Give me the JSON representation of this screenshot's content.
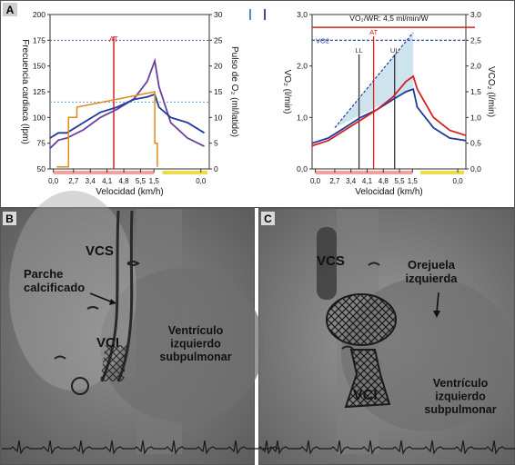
{
  "panels": {
    "a_label": "A",
    "b_label": "B",
    "c_label": "C"
  },
  "chart_data": [
    {
      "type": "line",
      "x": [
        "0,0",
        "2,7",
        "3,4",
        "4,1",
        "4,8",
        "5,5",
        "1,5",
        "0,0"
      ],
      "xlabel": "Velocidad (km/h)",
      "ylabel_left": "Frecuencia cardiaca (lpm)",
      "ylabel_right": "Pulso de O₂ (ml/latido)",
      "ylim_left": [
        50,
        200
      ],
      "ylim_right": [
        0,
        30
      ],
      "yticks_left": [
        "50",
        "75",
        "100",
        "125",
        "150",
        "175",
        "200"
      ],
      "yticks_right": [
        "0",
        "5",
        "10",
        "15",
        "20",
        "25",
        "30"
      ],
      "legend_swatches": [
        "#4a90d9",
        "#5a3aa0"
      ],
      "at_label": "AT",
      "colors": {
        "heart_rate": "#6b3fa0",
        "o2_pulse": "#1f3a9e",
        "workload": "#e08a1c",
        "at_line": "#d62020",
        "baseline": "#e07878",
        "recovery": "#e8d33a"
      },
      "series": [
        {
          "role": "heart_rate",
          "points": [
            [
              0.0,
              70
            ],
            [
              0.5,
              78
            ],
            [
              1.0,
              80
            ],
            [
              2.0,
              88
            ],
            [
              3.0,
              100
            ],
            [
              4.0,
              108
            ],
            [
              5.0,
              118
            ],
            [
              5.8,
              135
            ],
            [
              6.25,
              155
            ],
            [
              6.5,
              130
            ],
            [
              7.2,
              95
            ],
            [
              8.2,
              80
            ],
            [
              9.2,
              72
            ]
          ]
        },
        {
          "role": "o2_pulse",
          "points": [
            [
              0.0,
              6
            ],
            [
              0.5,
              7
            ],
            [
              1.0,
              7
            ],
            [
              2.0,
              9
            ],
            [
              3.0,
              11
            ],
            [
              4.0,
              12
            ],
            [
              5.0,
              13.5
            ],
            [
              5.8,
              14
            ],
            [
              6.25,
              14.5
            ],
            [
              6.5,
              12
            ],
            [
              7.2,
              10
            ],
            [
              8.2,
              9
            ],
            [
              9.2,
              7
            ]
          ]
        },
        {
          "role": "workload",
          "points": [
            [
              0.4,
              52
            ],
            [
              1.1,
              52
            ],
            [
              1.1,
              100
            ],
            [
              1.6,
              100
            ],
            [
              1.6,
              110
            ],
            [
              6.25,
              125
            ],
            [
              6.25,
              75
            ],
            [
              6.4,
              75
            ],
            [
              6.4,
              52
            ]
          ]
        }
      ],
      "reference_lines": [
        {
          "y": 175,
          "label": ""
        },
        {
          "y": 115,
          "label": ""
        }
      ],
      "at_x": 3.8
    },
    {
      "type": "line",
      "x": [
        "0,0",
        "2,7",
        "3,4",
        "4,1",
        "4,8",
        "5,5",
        "1,5",
        "0,0"
      ],
      "xlabel": "Velocidad (km/h)",
      "ylabel_left": "VO₂ (l/min)",
      "ylabel_right": "VCO₂ (l/min)",
      "ylim_left": [
        0,
        3
      ],
      "ylim_right": [
        0,
        3
      ],
      "yticks_left": [
        "0,0",
        "1,0",
        "2,0",
        "3,0"
      ],
      "yticks_right": [
        "0,0",
        "0,5",
        "1,0",
        "1,5",
        "2,0",
        "2,5",
        "3,0"
      ],
      "annotation": "VO₂/WR: 4,5 ml/min/W",
      "labels": {
        "vo2": "VO2",
        "at": "AT",
        "ll": "LL",
        "ul": "UL"
      },
      "colors": {
        "vo2": "#1f3a9e",
        "vco2": "#d62020",
        "ll": "#333333",
        "ul": "#333333",
        "at": "#d62020",
        "shaded": "#b8d8e8"
      },
      "series": [
        {
          "role": "vo2",
          "points": [
            [
              0,
              0.5
            ],
            [
              1,
              0.6
            ],
            [
              2,
              0.8
            ],
            [
              3,
              1.0
            ],
            [
              4,
              1.15
            ],
            [
              5,
              1.35
            ],
            [
              5.8,
              1.5
            ],
            [
              6.25,
              1.55
            ],
            [
              6.5,
              1.2
            ],
            [
              7.5,
              0.8
            ],
            [
              8.5,
              0.6
            ],
            [
              9.5,
              0.55
            ]
          ]
        },
        {
          "role": "vco2",
          "points": [
            [
              0,
              0.45
            ],
            [
              1,
              0.55
            ],
            [
              2,
              0.75
            ],
            [
              3,
              0.95
            ],
            [
              4,
              1.15
            ],
            [
              5,
              1.4
            ],
            [
              5.8,
              1.7
            ],
            [
              6.25,
              1.8
            ],
            [
              6.5,
              1.55
            ],
            [
              7.5,
              1.0
            ],
            [
              8.5,
              0.75
            ],
            [
              9.5,
              0.65
            ]
          ]
        }
      ],
      "reference_lines": [
        {
          "y": 2.75,
          "label": ""
        },
        {
          "y": 2.5,
          "label": "VO2"
        }
      ],
      "ll_x": 2.9,
      "ul_x": 5.1,
      "at_x": 3.8
    }
  ],
  "images": {
    "b": {
      "vcs": "VCS",
      "parche": "Parche\ncalcificado",
      "vci": "VCI",
      "ventriculo": "Ventrículo\nizquierdo\nsubpulmonar"
    },
    "c": {
      "vcs": "VCS",
      "orejuela": "Orejuela\nizquierda",
      "vci": "VCI",
      "ventriculo": "Ventrículo\nizquierdo\nsubpulmonar"
    }
  }
}
